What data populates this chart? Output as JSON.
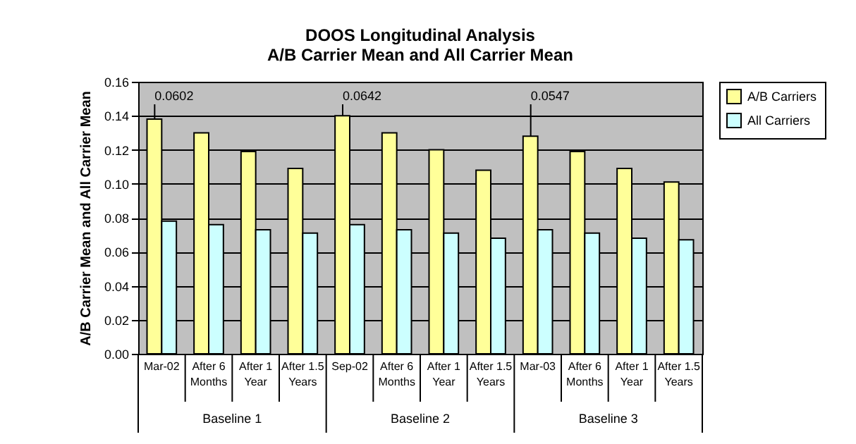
{
  "chart_data": {
    "type": "bar",
    "title": "DOOS Longitudinal Analysis",
    "subtitle": "A/B Carrier Mean and All Carrier Mean",
    "ylabel": "A/B Carrier Mean and All Carrier Mean",
    "categories": [
      "Mar-02",
      "After 6 Months",
      "After 1 Year",
      "After 1.5 Years",
      "Sep-02",
      "After 6 Months",
      "After 1 Year",
      "After 1.5 Years",
      "Mar-03",
      "After 6 Months",
      "After 1 Year",
      "After 1.5 Years"
    ],
    "series": [
      {
        "name": "A/B Carriers",
        "color": "#ffff99",
        "values": [
          0.138,
          0.13,
          0.119,
          0.109,
          0.14,
          0.13,
          0.12,
          0.108,
          0.128,
          0.119,
          0.109,
          0.101
        ]
      },
      {
        "name": "All Carriers",
        "color": "#ccffff",
        "values": [
          0.078,
          0.076,
          0.073,
          0.071,
          0.076,
          0.073,
          0.071,
          0.068,
          0.073,
          0.071,
          0.068,
          0.067
        ]
      }
    ],
    "ylim": [
      0,
      0.16
    ],
    "yticks": [
      {
        "value": 0,
        "label": "0.00"
      },
      {
        "value": 0.02,
        "label": "0.02"
      },
      {
        "value": 0.04,
        "label": "0.04"
      },
      {
        "value": 0.06,
        "label": "0.06"
      },
      {
        "value": 0.08,
        "label": "0.08"
      },
      {
        "value": 0.1,
        "label": "0.10"
      },
      {
        "value": 0.12,
        "label": "0.12"
      },
      {
        "value": 0.14,
        "label": "0.14"
      },
      {
        "value": 0.16,
        "label": "0.16"
      }
    ],
    "grid": "y",
    "legend": "right",
    "annotations": [
      {
        "text": "0.0602",
        "x": "Mar-02",
        "y": 0.138
      },
      {
        "text": "0.0642",
        "x": "Sep-02",
        "y": 0.14
      },
      {
        "text": "0.0547",
        "x": "Mar-03",
        "y": 0.128
      },
      "Baseline 1",
      "Baseline 2",
      "Baseline 3"
    ]
  }
}
